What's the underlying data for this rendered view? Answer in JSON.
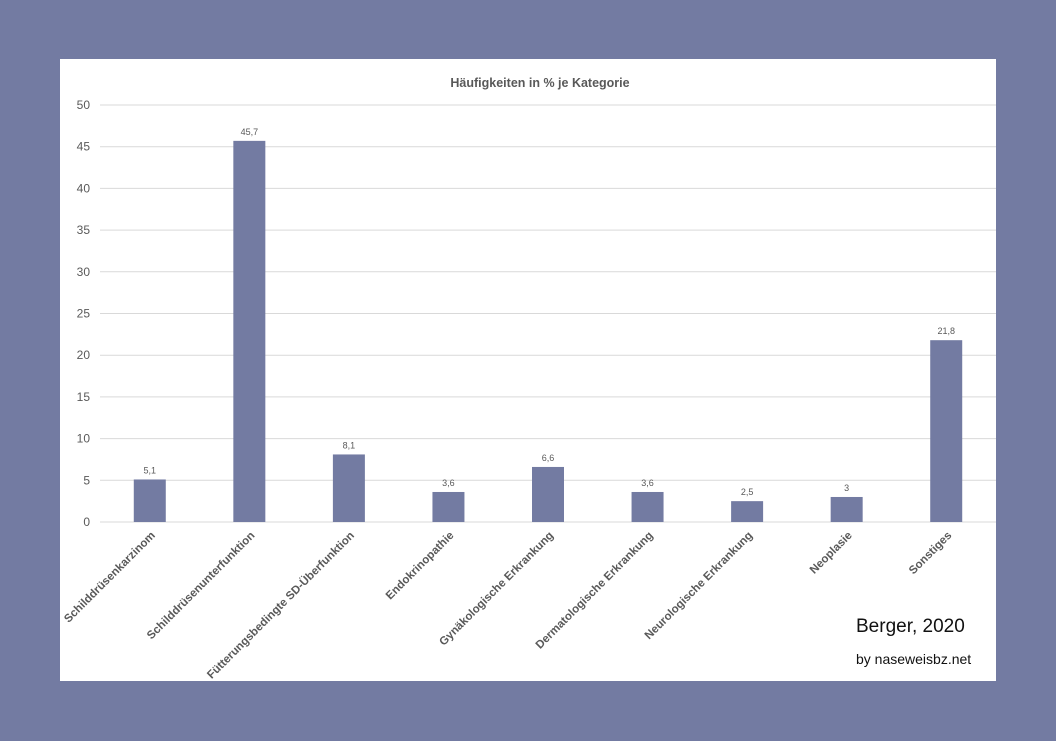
{
  "chart_data": {
    "type": "bar",
    "title": "Häufigkeiten in % je Kategorie",
    "categories": [
      "Schilddrüsenkarzinom",
      "Schilddrüsenunterfunktion",
      "Fütterungsbedingte SD-Überfunktion",
      "Endokrinopathie",
      "Gynäkologische Erkrankung",
      "Dermatologische Erkrankung",
      "Neurologische Erkrankung",
      "Neoplasie",
      "Sonstiges"
    ],
    "values": [
      5.1,
      45.7,
      8.1,
      3.6,
      6.6,
      3.6,
      2.5,
      3,
      21.8
    ],
    "value_labels": [
      "5,1",
      "45,7",
      "8,1",
      "3,6",
      "6,6",
      "3,6",
      "2,5",
      "3",
      "21,8"
    ],
    "ylim": [
      0,
      50
    ],
    "yticks": [
      0,
      5,
      10,
      15,
      20,
      25,
      30,
      35,
      40,
      45,
      50
    ],
    "xlabel": "",
    "ylabel": "",
    "grid": true,
    "legend": "none",
    "bar_color": "#737ba2"
  },
  "credits": {
    "author": "Berger,  2020",
    "site": "by naseweisbz.net"
  },
  "colors": {
    "frame": "#737ba2",
    "panel": "#ffffff",
    "grid": "#d9d9d9",
    "text": "#595959"
  }
}
